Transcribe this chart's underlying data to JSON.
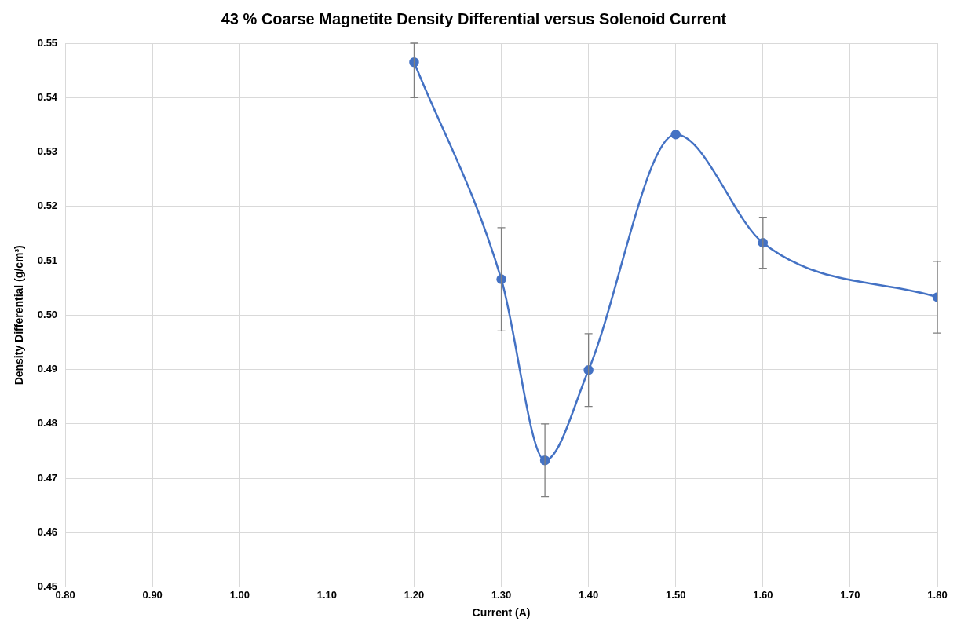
{
  "chart_data": {
    "type": "line",
    "title": "43 % Coarse Magnetite Density Differential versus Solenoid Current",
    "xlabel": "Current (A)",
    "ylabel": "Density Differential (g/cm³)",
    "x": [
      1.2,
      1.3,
      1.35,
      1.4,
      1.5,
      1.6,
      1.8
    ],
    "series": [
      {
        "color": "#4472c4",
        "values": [
          0.5465,
          0.5066,
          0.4733,
          0.4899,
          0.5332,
          0.5133,
          0.5033
        ],
        "errors": [
          [
            0.54,
            0.55
          ],
          0.0095,
          0.0067,
          0.0067,
          null,
          0.0047,
          0.0066
        ]
      }
    ],
    "xlim": [
      0.8,
      1.8
    ],
    "xticks": [
      {
        "value": 0.8,
        "label": "0.80"
      },
      {
        "value": 0.9,
        "label": "0.90"
      },
      {
        "value": 1.0,
        "label": "1.00"
      },
      {
        "value": 1.1,
        "label": "1.10"
      },
      {
        "value": 1.2,
        "label": "1.20"
      },
      {
        "value": 1.3,
        "label": "1.30"
      },
      {
        "value": 1.4,
        "label": "1.40"
      },
      {
        "value": 1.5,
        "label": "1.50"
      },
      {
        "value": 1.6,
        "label": "1.60"
      },
      {
        "value": 1.7,
        "label": "1.70"
      },
      {
        "value": 1.8,
        "label": "1.80"
      }
    ],
    "ylim": [
      0.45,
      0.55
    ],
    "yticks": [
      0.45,
      0.46,
      0.47,
      0.48,
      0.49,
      {
        "value": 0.5,
        "label": "0.50"
      },
      0.51,
      0.52,
      0.53,
      0.54,
      0.55
    ],
    "grid": true,
    "legend": false,
    "marker": "circle",
    "line_style": "solid"
  }
}
